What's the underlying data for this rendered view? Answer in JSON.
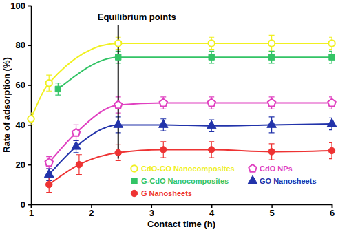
{
  "chart_data": {
    "type": "line",
    "x_label": "Contact time (h)",
    "y_label": "Rate of adsorption (%)",
    "xlim": [
      1,
      6
    ],
    "ylim": [
      0,
      100
    ],
    "xticks": [
      1,
      2,
      3,
      4,
      5,
      6
    ],
    "yticks": [
      0,
      20,
      40,
      60,
      80,
      100
    ],
    "grid": false,
    "legend": "lower right",
    "annotations": [
      {
        "text": "Equilibrium points",
        "x": 2.45,
        "y_start": 23,
        "y_end": 90
      }
    ],
    "series": [
      {
        "name": "CdO-GO Nanocomposites",
        "color": "#f0f020",
        "marker": "circle-open",
        "x": [
          1,
          1.3,
          2.45,
          4,
          5,
          6
        ],
        "values": [
          43,
          61,
          81,
          81,
          81,
          81
        ],
        "errors": [
          3,
          4,
          3,
          3,
          4,
          3
        ]
      },
      {
        "name": "CdO NPs",
        "color": "#e040c0",
        "marker": "pentagon-open",
        "x": [
          1.3,
          1.75,
          2.45,
          3.2,
          4,
          5,
          6
        ],
        "values": [
          21,
          36,
          50,
          51,
          51,
          51,
          51
        ],
        "errors": [
          3,
          4,
          4,
          3,
          3,
          3,
          3
        ]
      },
      {
        "name": "G-CdO Nanocomposites",
        "color": "#33c466",
        "marker": "square",
        "x": [
          1.45,
          2.45,
          4,
          5,
          6
        ],
        "values": [
          58,
          74,
          74,
          74,
          74
        ],
        "errors": [
          3,
          3,
          3,
          3,
          3
        ]
      },
      {
        "name": "GO Nanosheets",
        "color": "#2233aa",
        "marker": "triangle",
        "x": [
          1.3,
          1.75,
          2.45,
          3.2,
          4,
          5,
          6
        ],
        "values": [
          15,
          29,
          40,
          40,
          39.5,
          40,
          40.5
        ],
        "errors": [
          3,
          3,
          4,
          3,
          3,
          4,
          3
        ]
      },
      {
        "name": "G Nanosheets",
        "color": "#ee3333",
        "marker": "circle",
        "x": [
          1.3,
          1.8,
          2.45,
          3.2,
          4,
          5,
          6
        ],
        "values": [
          10,
          20,
          26,
          27.5,
          27.5,
          26.5,
          27
        ],
        "errors": [
          4,
          5,
          4,
          4,
          4,
          4,
          4
        ]
      }
    ]
  }
}
